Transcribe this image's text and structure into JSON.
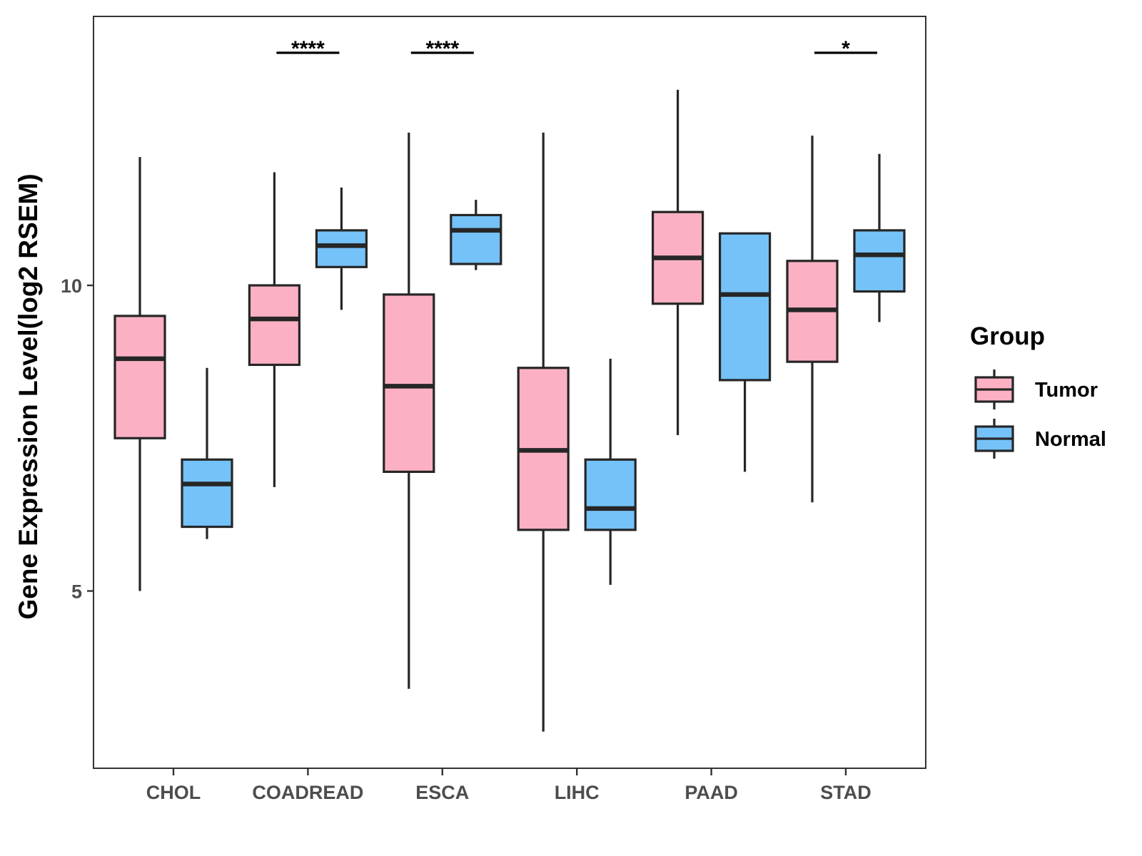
{
  "chart_data": {
    "type": "boxplot",
    "ylabel": "Gene Expression Level(log2 RSEM)",
    "xlabel": "",
    "ylim": [
      2.1,
      14.4
    ],
    "yticks": [
      5,
      10
    ],
    "ytick_labels": [
      "5",
      "10"
    ],
    "categories": [
      "CHOL",
      "COADREAD",
      "ESCA",
      "LIHC",
      "PAAD",
      "STAD"
    ],
    "legend": {
      "title": "Group",
      "position": "right",
      "entries": [
        {
          "name": "Tumor",
          "color": "#fbb1c3"
        },
        {
          "name": "Normal",
          "color": "#75c2f8"
        }
      ]
    },
    "series": [
      {
        "name": "Tumor",
        "color": "#fbb1c3",
        "boxes": [
          {
            "category": "CHOL",
            "min": 5.0,
            "q1": 7.5,
            "median": 8.8,
            "q3": 9.5,
            "max": 12.1
          },
          {
            "category": "COADREAD",
            "min": 6.7,
            "q1": 8.7,
            "median": 9.45,
            "q3": 10.0,
            "max": 11.85
          },
          {
            "category": "ESCA",
            "min": 3.4,
            "q1": 6.95,
            "median": 8.35,
            "q3": 9.85,
            "max": 12.5
          },
          {
            "category": "LIHC",
            "min": 2.7,
            "q1": 6.0,
            "median": 7.3,
            "q3": 8.65,
            "max": 12.5
          },
          {
            "category": "PAAD",
            "min": 7.55,
            "q1": 9.7,
            "median": 10.45,
            "q3": 11.2,
            "max": 13.2
          },
          {
            "category": "STAD",
            "min": 6.45,
            "q1": 8.75,
            "median": 9.6,
            "q3": 10.4,
            "max": 12.45
          }
        ]
      },
      {
        "name": "Normal",
        "color": "#75c2f8",
        "boxes": [
          {
            "category": "CHOL",
            "min": 5.85,
            "q1": 6.05,
            "median": 6.75,
            "q3": 7.15,
            "max": 8.65
          },
          {
            "category": "COADREAD",
            "min": 9.6,
            "q1": 10.3,
            "median": 10.65,
            "q3": 10.9,
            "max": 11.6
          },
          {
            "category": "ESCA",
            "min": 10.25,
            "q1": 10.35,
            "median": 10.9,
            "q3": 11.15,
            "max": 11.4
          },
          {
            "category": "LIHC",
            "min": 5.1,
            "q1": 6.0,
            "median": 6.35,
            "q3": 7.15,
            "max": 8.8
          },
          {
            "category": "PAAD",
            "min": 6.95,
            "q1": 8.45,
            "median": 9.85,
            "q3": 10.85,
            "max": 10.85
          },
          {
            "category": "STAD",
            "min": 9.4,
            "q1": 9.9,
            "median": 10.5,
            "q3": 10.9,
            "max": 12.15
          }
        ]
      }
    ],
    "significance": [
      {
        "category": "COADREAD",
        "label": "****"
      },
      {
        "category": "ESCA",
        "label": "****"
      },
      {
        "category": "STAD",
        "label": "*"
      }
    ]
  }
}
